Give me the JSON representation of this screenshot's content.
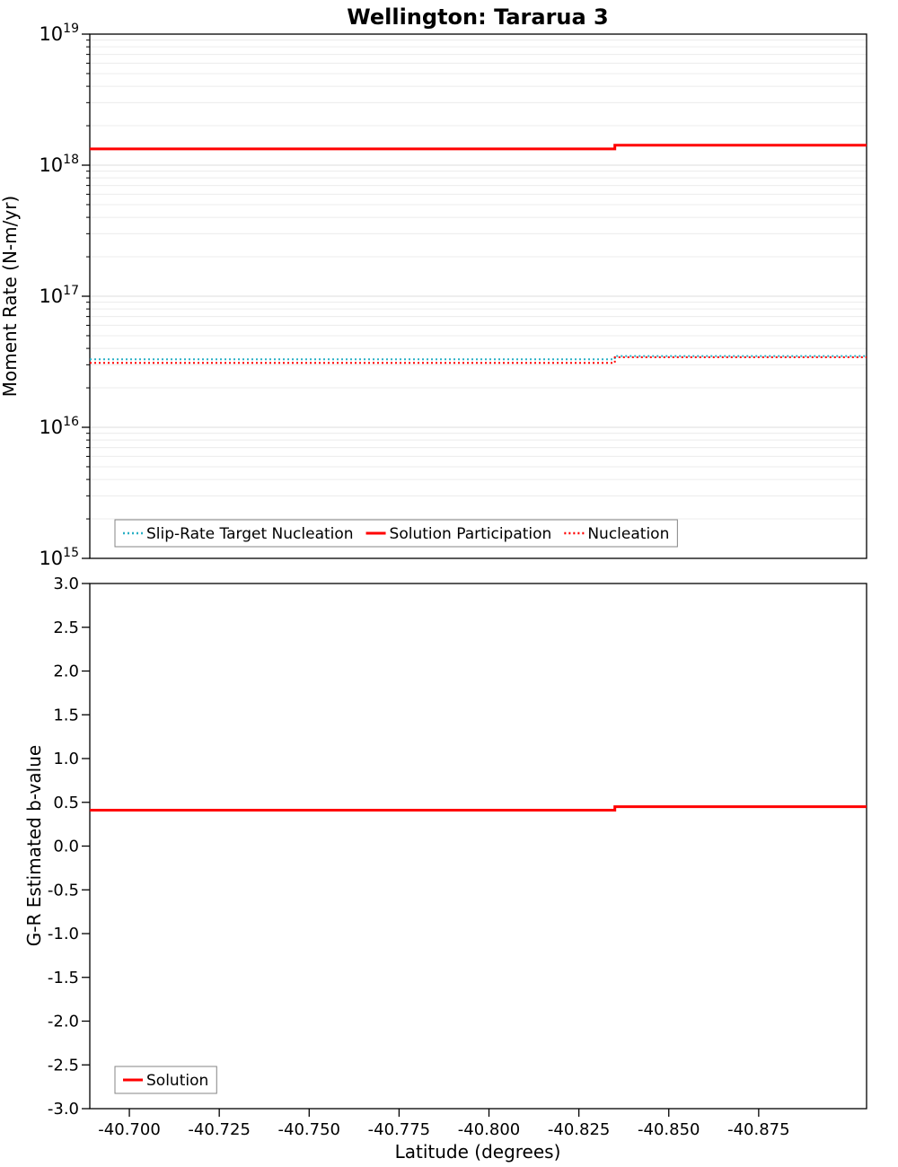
{
  "chart_data": [
    {
      "type": "line",
      "title": "Wellington: Tararua 3",
      "ylabel": "Moment Rate (N-m/yr)",
      "yscale": "log",
      "ylim": [
        1000000000000000.0,
        1e+19
      ],
      "xlim": [
        -40.689,
        -40.905
      ],
      "x_inverted": true,
      "grid": {
        "horizontal": true,
        "log_minor": true,
        "color_major": "#dcdcdc",
        "color_minor": "#ececec"
      },
      "yticks": {
        "values": [
          1000000000000000.0,
          1e+16,
          1e+17,
          1e+18,
          1e+19
        ],
        "exponents": [
          "15",
          "16",
          "17",
          "18",
          "19"
        ]
      },
      "legend": {
        "position": "bottom-inside-left"
      },
      "series": [
        {
          "name": "Slip-Rate Target Nucleation",
          "color": "#2ab0c5",
          "line_style": "dotted",
          "line_width": 2,
          "x": [
            -40.689,
            -40.835,
            -40.835,
            -40.905
          ],
          "y": [
            3.3e+16,
            3.3e+16,
            3.5e+16,
            3.5e+16
          ]
        },
        {
          "name": "Solution Participation",
          "color": "#ff0000",
          "line_style": "solid",
          "line_width": 3,
          "x": [
            -40.689,
            -40.835,
            -40.835,
            -40.905
          ],
          "y": [
            1.33e+18,
            1.33e+18,
            1.42e+18,
            1.42e+18
          ]
        },
        {
          "name": "Nucleation",
          "color": "#ff0000",
          "line_style": "dotted",
          "line_width": 2,
          "x": [
            -40.689,
            -40.835,
            -40.835,
            -40.905
          ],
          "y": [
            3.1e+16,
            3.1e+16,
            3.42e+16,
            3.42e+16
          ]
        }
      ]
    },
    {
      "type": "line",
      "title": "",
      "ylabel": "G-R Estimated b-value",
      "xlabel": "Latitude (degrees)",
      "yscale": "linear",
      "ylim": [
        -3.0,
        3.0
      ],
      "xlim": [
        -40.689,
        -40.905
      ],
      "x_inverted": true,
      "grid": {
        "horizontal": false
      },
      "yticks": {
        "values": [
          3.0,
          2.5,
          2.0,
          1.5,
          1.0,
          0.5,
          0.0,
          -0.5,
          -1.0,
          -1.5,
          -2.0,
          -2.5,
          -3.0
        ],
        "labels": [
          "3.0",
          "2.5",
          "2.0",
          "1.5",
          "1.0",
          "0.5",
          "0.0",
          "-0.5",
          "-1.0",
          "-1.5",
          "-2.0",
          "-2.5",
          "-3.0"
        ]
      },
      "xticks": {
        "values": [
          -40.7,
          -40.725,
          -40.75,
          -40.775,
          -40.8,
          -40.825,
          -40.85,
          -40.875
        ],
        "labels": [
          "-40.700",
          "-40.725",
          "-40.750",
          "-40.775",
          "-40.800",
          "-40.825",
          "-40.850",
          "-40.875"
        ]
      },
      "legend": {
        "position": "bottom-inside-left"
      },
      "series": [
        {
          "name": "Solution",
          "color": "#ff0000",
          "line_style": "solid",
          "line_width": 3,
          "x": [
            -40.689,
            -40.835,
            -40.835,
            -40.905
          ],
          "y": [
            0.41,
            0.41,
            0.45,
            0.45
          ]
        }
      ]
    }
  ],
  "style": {
    "axis_color": "#000000",
    "legend_border_color": "#848484",
    "legend_background": "#ffffff"
  }
}
